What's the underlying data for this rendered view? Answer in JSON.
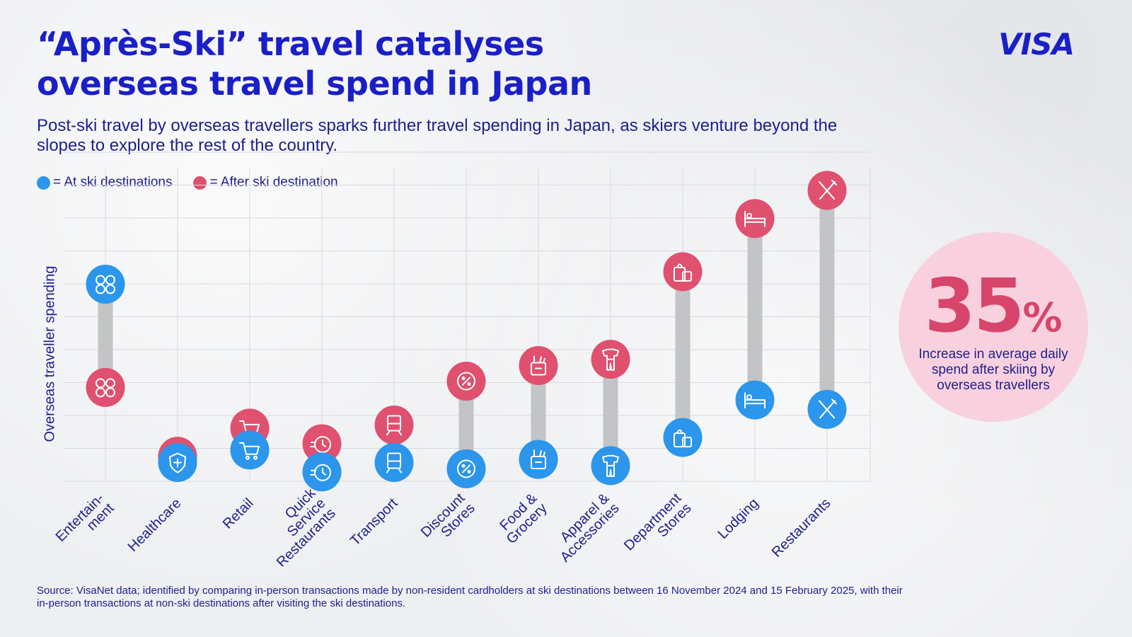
{
  "title": "“Après-Ski” travel catalyses overseas travel spend in Japan",
  "logo_text": "VISA",
  "subtitle": "Post-ski travel by overseas travellers sparks further travel spending in Japan, as skiers venture beyond the slopes to explore the rest of the country.",
  "legend": [
    {
      "label": "= At ski destinations",
      "color": "#2b96ec"
    },
    {
      "label": "= After ski destination",
      "color": "#e0506f"
    }
  ],
  "stat": {
    "value": "35",
    "unit": "%",
    "text": "Increase in average daily spend after skiing by overseas travellers"
  },
  "source": "Source: VisaNet data; identified by comparing in-person transactions made by non-resident cardholders at ski destinations between 16 November 2024 and 15 February 2025, with their in-person transactions at non-ski destinations after visiting the ski destinations.",
  "colors": {
    "brand": "#1a1fc7",
    "text": "#1c1f8e",
    "at_ski": "#2b96ec",
    "after_ski": "#e0506f",
    "connector": "#c3c4c6",
    "stat_bg": "#f9d1de"
  },
  "chart_data": {
    "type": "dumbbell",
    "title": "",
    "xlabel": "",
    "ylabel": "Overseas traveller spending",
    "ylim": [
      0,
      10
    ],
    "grid": true,
    "legend_position": "top-left",
    "categories": [
      {
        "label": [
          "Entertain-",
          "ment"
        ],
        "icon": "entertainment-icon"
      },
      {
        "label": [
          "Healthcare"
        ],
        "icon": "health-shield-icon"
      },
      {
        "label": [
          "Retail"
        ],
        "icon": "shopping-cart-icon"
      },
      {
        "label": [
          "Quick",
          "Service",
          "Restaurants"
        ],
        "icon": "stopwatch-icon"
      },
      {
        "label": [
          "Transport"
        ],
        "icon": "train-icon"
      },
      {
        "label": [
          "Discount",
          "Stores"
        ],
        "icon": "discount-badge-icon"
      },
      {
        "label": [
          "Food &",
          "Grocery"
        ],
        "icon": "grocery-bag-icon"
      },
      {
        "label": [
          "Apparel &",
          "Accessories"
        ],
        "icon": "clothing-icon"
      },
      {
        "label": [
          "Department",
          "Stores"
        ],
        "icon": "shopping-bags-icon"
      },
      {
        "label": [
          "Lodging"
        ],
        "icon": "bed-icon"
      },
      {
        "label": [
          "Restaurants"
        ],
        "icon": "fork-knife-icon"
      }
    ],
    "series": [
      {
        "name": "At ski destinations",
        "values": [
          6.3,
          0.6,
          1.0,
          0.3,
          0.6,
          0.4,
          0.7,
          0.5,
          1.4,
          2.6,
          2.3
        ]
      },
      {
        "name": "After ski destination",
        "values": [
          3.0,
          0.8,
          1.7,
          1.2,
          1.8,
          3.2,
          3.7,
          3.9,
          6.7,
          8.4,
          9.3
        ]
      }
    ]
  }
}
